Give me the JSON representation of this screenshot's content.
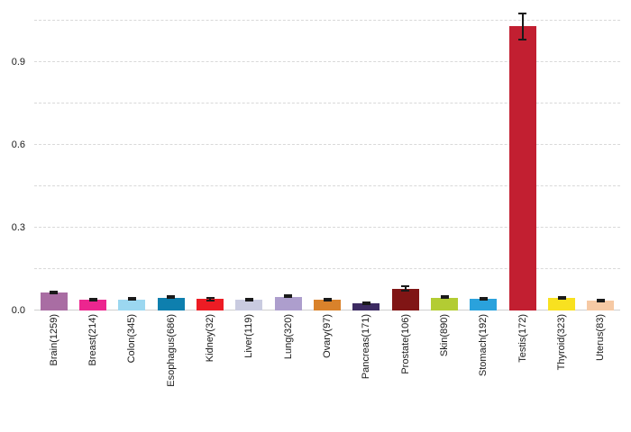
{
  "chart_data": {
    "type": "bar",
    "title": "",
    "xlabel": "",
    "ylabel": "",
    "ylim": [
      0,
      1.1
    ],
    "yticks": [
      0.0,
      0.3,
      0.6,
      0.9
    ],
    "gridlines": [
      0.15,
      0.3,
      0.45,
      0.6,
      0.75,
      0.9,
      1.05
    ],
    "grid_style": "dashed",
    "legend": "none",
    "categories": [
      "Brain(1259)",
      "Breast(214)",
      "Colon(345)",
      "Esophagus(686)",
      "Kidney(32)",
      "Liver(119)",
      "Lung(320)",
      "Ovary(97)",
      "Pancreas(171)",
      "Prostate(106)",
      "Skin(890)",
      "Stomach(192)",
      "Testis(172)",
      "Thyroid(323)",
      "Uterus(83)"
    ],
    "values": [
      0.065,
      0.038,
      0.04,
      0.045,
      0.042,
      0.04,
      0.05,
      0.04,
      0.025,
      0.08,
      0.045,
      0.042,
      1.03,
      0.045,
      0.035
    ],
    "errors": [
      0.007,
      0.005,
      0.004,
      0.004,
      0.008,
      0.006,
      0.004,
      0.006,
      0.005,
      0.01,
      0.004,
      0.005,
      0.05,
      0.005,
      0.006
    ],
    "colors": [
      "#a96da3",
      "#ec268f",
      "#9bd7f0",
      "#0e7fae",
      "#ed1c24",
      "#c9cbe0",
      "#ad9ecd",
      "#d9822b",
      "#3d2b62",
      "#801515",
      "#b3cc33",
      "#2aa2dc",
      "#c21f31",
      "#f8e120",
      "#f6c9a4"
    ],
    "error_color": "#1a1a1a"
  }
}
